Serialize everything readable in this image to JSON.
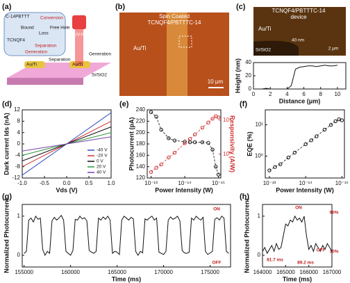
{
  "figure": {
    "a": {
      "label": "(a)",
      "texts": [
        "C-14PBTTT",
        "TCNQF4",
        "Bound",
        "Free Hole",
        "Conversion",
        "Loss",
        "Separation",
        "Generation",
        "UV-NIR",
        "Au/Ti",
        "Separation",
        "Generation",
        "Si/SiO2",
        "Au/Ti"
      ]
    },
    "b": {
      "label": "(b)",
      "title": "Spin Coated",
      "subtitle": "TCNQF4/PBTTTC-14",
      "electrode": "Au/Ti",
      "scale": "10 μm"
    },
    "c": {
      "title": "TCNQF4/PBTTTC-14",
      "subtitle": "device",
      "electrode": "Au/Ti",
      "thickness": "40 nm",
      "substrate": "Si/SiO2",
      "scale": "2 μm"
    }
  },
  "chart_data": [
    {
      "type": "line",
      "label": "(c)",
      "xlabel": "Distance (μm)",
      "ylabel": "Height (nm)",
      "x": [
        0,
        0.5,
        1,
        1.5,
        2,
        2.5,
        3,
        3.5,
        4,
        4.5,
        5,
        5.5,
        6,
        6.5,
        7,
        7.5,
        8,
        8.5,
        9,
        9.5,
        10
      ],
      "series": [
        {
          "color": "#111111",
          "values": [
            0,
            0,
            0,
            1,
            0,
            0,
            0,
            0,
            0,
            5,
            30,
            33,
            34,
            35,
            35,
            34,
            35,
            36,
            35,
            35,
            36
          ]
        }
      ],
      "xlim": [
        0,
        11
      ],
      "xticks": [
        0,
        2,
        4,
        6,
        8,
        10
      ],
      "ylim": [
        0,
        40
      ],
      "yticks": [
        0,
        20,
        40
      ]
    },
    {
      "type": "line",
      "label": "(d)",
      "xlabel": "Vds (V)",
      "ylabel": "Dark current Ids (nA)",
      "x": [
        -1,
        -0.5,
        0,
        0.5,
        1
      ],
      "series": [
        {
          "name": "-40 V",
          "color": "#2f4fc0",
          "values": [
            -11,
            -5.5,
            0,
            5.5,
            11
          ]
        },
        {
          "name": "-20 V",
          "color": "#d03030",
          "values": [
            -8,
            -4,
            0,
            4,
            8
          ]
        },
        {
          "name": "0 V",
          "color": "#111111",
          "values": [
            -6,
            -3,
            0,
            3,
            6
          ]
        },
        {
          "name": "20 V",
          "color": "#2a9a3a",
          "values": [
            -4,
            -2,
            0,
            2,
            4
          ]
        },
        {
          "name": "40 V",
          "color": "#7a3fb0",
          "values": [
            -2.5,
            -1.25,
            0,
            1.25,
            2.5
          ]
        }
      ],
      "xlim": [
        -1,
        1
      ],
      "xticks": [
        {
          "value": -1,
          "label": "-1.0"
        },
        {
          "value": -0.5,
          "label": "-0.5"
        },
        {
          "value": 0,
          "label": "0.0"
        },
        {
          "value": 0.5,
          "label": "0.5"
        },
        {
          "value": 1,
          "label": "1.0"
        }
      ],
      "ylim": [
        -12,
        12
      ],
      "yticks": [
        -12,
        -8,
        -4,
        0,
        4,
        8,
        12
      ],
      "legend": "lower right"
    },
    {
      "type": "line",
      "label": "(e)",
      "xlabel": "Power Intensity (W)",
      "ylabel": "Photocurrent (pA)",
      "y2label": "Responsivity (A/W)",
      "markers": true,
      "x": [
        1e-13,
        7e-14,
        5e-14,
        3e-14,
        2e-14,
        1e-14,
        7e-15,
        5e-15,
        3e-15,
        2e-15,
        1.5e-15,
        1.2e-15,
        1e-15
      ],
      "series": [
        {
          "color": "#111111",
          "values": [
            236,
            228,
            205,
            190,
            186,
            184,
            183,
            183,
            183,
            182,
            170,
            140,
            126
          ]
        },
        {
          "color": "#d03030",
          "axis": "y2",
          "values": [
            0.3,
            0.4,
            0.5,
            0.8,
            1.1,
            2.1,
            2.8,
            3.8,
            6,
            8.5,
            11,
            13,
            12
          ]
        }
      ],
      "xlog": true,
      "xlim": [
        1.3e-13,
        8.5e-16
      ],
      "xticks": [
        {
          "value": 1e-13,
          "label": "10⁻¹³"
        },
        {
          "value": 1e-14,
          "label": "10⁻¹⁴"
        },
        {
          "value": 1e-15,
          "label": "10⁻¹⁵"
        }
      ],
      "ylim": [
        120,
        240
      ],
      "yticks": [
        120,
        140,
        160,
        180,
        200,
        220,
        240
      ],
      "y2log": true,
      "y2lim": [
        0.2,
        20
      ],
      "y2ticks": [
        {
          "value": 1,
          "label": "10⁰"
        },
        {
          "value": 10,
          "label": "10¹"
        }
      ]
    },
    {
      "type": "line",
      "label": "(f)",
      "xlabel": "Power Intensity (W)",
      "ylabel": "EQE (%)",
      "markers": true,
      "x": [
        1e-13,
        7e-14,
        5e-14,
        3e-14,
        2e-14,
        1e-14,
        7e-15,
        5e-15,
        3e-15,
        2e-15,
        1.5e-15,
        1.2e-15,
        1e-15
      ],
      "series": [
        {
          "color": "#111111",
          "values": [
            0.35,
            0.45,
            0.55,
            0.9,
            1.3,
            2.4,
            3.2,
            4.3,
            7,
            10,
            13,
            15,
            14
          ]
        }
      ],
      "xlog": true,
      "xlim": [
        1.3e-13,
        8.5e-16
      ],
      "xticks": [
        {
          "value": 1e-13,
          "label": "10⁻¹³"
        },
        {
          "value": 1e-14,
          "label": "10⁻¹⁴"
        },
        {
          "value": 1e-15,
          "label": "10⁻¹⁵"
        }
      ],
      "ylog": true,
      "ylim": [
        0.2,
        30
      ],
      "yticks": [
        {
          "value": 1,
          "label": "10⁰"
        },
        {
          "value": 10,
          "label": "10¹"
        }
      ]
    },
    {
      "type": "line",
      "label": "(g)",
      "xlabel": "Time (ms)",
      "ylabel": "Normalized Photocurrent",
      "annotations": [
        "ON",
        "OFF"
      ],
      "x": [
        155000,
        155250,
        155500,
        155750,
        156000,
        156250,
        156500,
        156750,
        157000,
        157250,
        157500,
        157750,
        158000,
        158250,
        158500,
        158750,
        159000,
        159250,
        159500,
        159750,
        160000,
        160250,
        160500,
        160750,
        161000,
        161250,
        161500,
        161750,
        162000,
        162250,
        162500,
        162750,
        163000,
        163250,
        163500,
        163750,
        164000,
        164250,
        164500,
        164750,
        165000,
        165250,
        165500,
        165750,
        166000,
        166250,
        166500,
        166750,
        167000,
        167250,
        167500,
        167750,
        168000,
        168250,
        168500,
        168750,
        169000,
        169250,
        169500,
        169750,
        170000,
        170250,
        170500,
        170750,
        171000,
        171250,
        171500,
        171750,
        172000,
        172250,
        172500,
        172750,
        173000,
        173250,
        173500,
        173750,
        174000,
        174250,
        174500,
        174750,
        175000,
        175250,
        175500,
        175750,
        176000,
        176250,
        176500,
        176750,
        177000
      ],
      "series": [
        {
          "color": "#111111",
          "values": [
            0.05,
            0.1,
            0.9,
            0.95,
            0.85,
            1.0,
            0.92,
            0.95,
            0.15,
            0.0,
            0.1,
            0.05,
            0.88,
            0.97,
            0.9,
            0.95,
            1.02,
            0.9,
            0.1,
            0.05,
            0.0,
            0.12,
            0.92,
            0.9,
            1.0,
            0.93,
            0.96,
            0.88,
            0.12,
            0.08,
            0.05,
            0.1,
            0.95,
            0.9,
            0.98,
            0.92,
            1.0,
            0.9,
            0.05,
            0.1,
            0.08,
            0.02,
            0.9,
            1.0,
            0.95,
            0.9,
            0.97,
            0.93,
            0.1,
            0.0,
            0.1,
            0.06,
            0.93,
            0.9,
            0.96,
            1.0,
            0.9,
            0.95,
            0.08,
            0.05,
            0.02,
            0.1,
            0.9,
            0.98,
            0.92,
            0.95,
            1.0,
            0.88,
            0.12,
            0.06,
            0.05,
            0.08,
            0.95,
            0.9,
            1.0,
            0.94,
            0.9,
            0.97,
            0.1,
            0.02,
            0.06,
            0.1,
            0.92,
            0.96,
            0.9,
            1.0,
            0.95,
            0.1,
            0.05
          ]
        }
      ],
      "xlim": [
        154800,
        177200
      ],
      "xticks": [
        155000,
        160000,
        165000,
        170000,
        175000
      ],
      "ylim": [
        -0.3,
        1.3
      ],
      "yticks": [
        0,
        1
      ]
    },
    {
      "type": "line",
      "label": "(h)",
      "xlabel": "Time (ms)",
      "ylabel": "Normalized Photocurrent",
      "annotations": [
        "ON",
        "OFF",
        "81.7 ms",
        "89.2 ms",
        "90%",
        "10%"
      ],
      "x": [
        164000,
        164100,
        164200,
        164300,
        164400,
        164500,
        164600,
        164700,
        164800,
        164900,
        165000,
        165100,
        165200,
        165300,
        165400,
        165500,
        165600,
        165700,
        165800,
        165900,
        166000,
        166100,
        166200,
        166300,
        166400,
        166500,
        166600,
        166700,
        166800,
        166900,
        167000
      ],
      "series": [
        {
          "color": "#111111",
          "values": [
            0.1,
            0.2,
            0.05,
            0.15,
            0.25,
            0.1,
            0.3,
            0.15,
            0.2,
            0.5,
            0.8,
            0.75,
            0.9,
            0.85,
            1.0,
            0.9,
            0.95,
            0.85,
            1.0,
            0.5,
            0.15,
            0.25,
            0.1,
            0.3,
            0.2,
            0.1,
            0.25,
            0.15,
            0.3,
            0.2,
            0.1
          ]
        }
      ],
      "xlim": [
        164000,
        167000
      ],
      "xticks": [
        164000,
        165000,
        166000,
        167000
      ],
      "ylim": [
        -0.3,
        1.3
      ],
      "yticks": [
        0,
        1
      ]
    }
  ]
}
